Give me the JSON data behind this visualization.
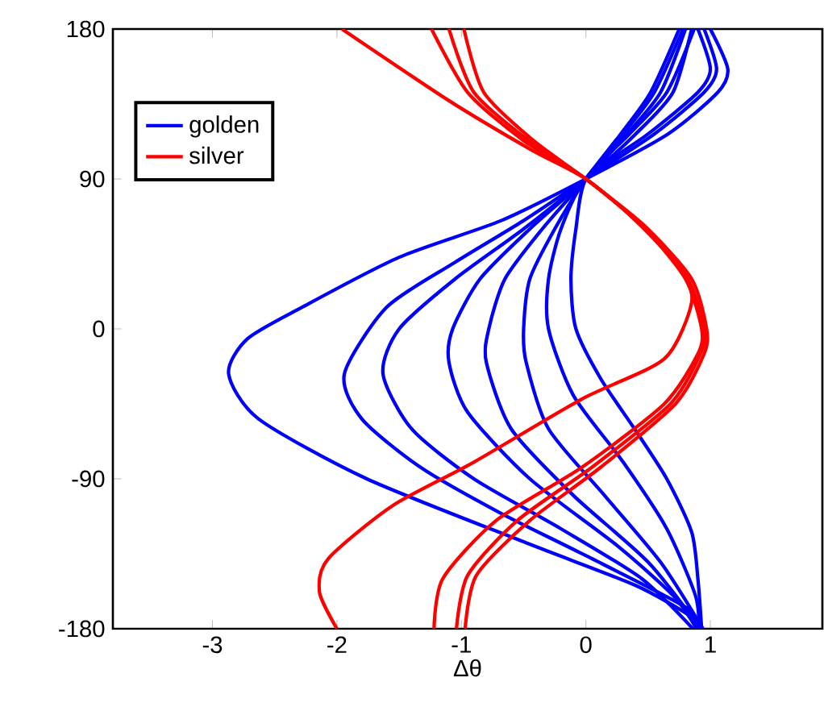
{
  "chart_data": {
    "type": "line",
    "xlabel": "Δθ",
    "xlim": [
      -3.8,
      1.9
    ],
    "ylim": [
      -180,
      180
    ],
    "xticks": [
      -3,
      -2,
      -1,
      0,
      1
    ],
    "yticks": [
      -180,
      -90,
      0,
      90,
      180
    ],
    "legend": "top left",
    "grid": false,
    "series": [
      {
        "name": "golden",
        "color": "#0000ff",
        "x": [
          1.0,
          1.14,
          1.06,
          0.66,
          0,
          -0.68,
          -1.5,
          -2.28,
          -2.72,
          -2.87,
          -2.63,
          -1.76,
          -0.46,
          0.4,
          0.85,
          0.88
        ],
        "values": [
          180,
          156,
          142,
          117,
          90,
          65,
          43,
          13,
          -6,
          -27,
          -54,
          -90,
          -129,
          -154,
          -173,
          -180
        ]
      },
      {
        "color": "#0000ff",
        "x": [
          0.95,
          1.05,
          0.95,
          0.55,
          0,
          -0.5,
          -1.05,
          -1.6,
          -1.94,
          -1.8,
          -1.33,
          -0.7,
          -0.03,
          0.8,
          0.9
        ],
        "values": [
          180,
          156,
          142,
          117,
          90,
          65,
          40,
          13,
          -27,
          -54,
          -83,
          -110,
          -135,
          -167,
          -180
        ]
      },
      {
        "color": "#0000ff",
        "x": [
          0.85,
          0.7,
          0.4,
          0,
          -0.5,
          -1.05,
          -1.5,
          -1.63,
          -1.4,
          -0.9,
          -0.2,
          0.45,
          0.86
        ],
        "values": [
          180,
          142,
          117,
          90,
          60,
          30,
          0,
          -27,
          -60,
          -90,
          -120,
          -150,
          -180
        ]
      },
      {
        "color": "#0000ff",
        "x": [
          0.8,
          0.6,
          0.33,
          0,
          -0.45,
          -0.85,
          -1.07,
          -1.1,
          -0.95,
          -0.45,
          0.25,
          0.7,
          0.89
        ],
        "values": [
          180,
          142,
          117,
          90,
          60,
          30,
          0,
          -20,
          -50,
          -90,
          -130,
          -160,
          -180
        ]
      },
      {
        "color": "#0000ff",
        "x": [
          0.78,
          0.55,
          0.3,
          0,
          -0.35,
          -0.65,
          -0.78,
          -0.8,
          -0.6,
          -0.1,
          0.5,
          0.92
        ],
        "values": [
          180,
          142,
          117,
          90,
          60,
          30,
          0,
          -20,
          -60,
          -100,
          -140,
          -180
        ]
      },
      {
        "color": "#0000ff",
        "x": [
          0.75,
          0.52,
          0.28,
          0,
          -0.25,
          -0.45,
          -0.5,
          -0.48,
          -0.3,
          0.15,
          0.6,
          0.94
        ],
        "values": [
          180,
          142,
          117,
          90,
          60,
          30,
          0,
          -20,
          -60,
          -100,
          -140,
          -180
        ]
      },
      {
        "color": "#0000ff",
        "x": [
          0.9,
          1.0,
          0.9,
          0.5,
          0,
          -0.2,
          -0.3,
          -0.3,
          -0.1,
          0.3,
          0.65,
          0.88,
          0.91
        ],
        "values": [
          180,
          156,
          142,
          117,
          90,
          60,
          30,
          0,
          -40,
          -80,
          -120,
          -160,
          -180
        ]
      },
      {
        "color": "#0000ff",
        "x": [
          0.87,
          0.65,
          0.35,
          0,
          -0.08,
          -0.12,
          -0.08,
          0.12,
          0.4,
          0.65,
          0.85,
          0.9,
          0.93
        ],
        "values": [
          180,
          142,
          117,
          90,
          60,
          30,
          0,
          -30,
          -61,
          -90,
          -122,
          -150,
          -180
        ]
      },
      {
        "name": "silver",
        "color": "#ff0000",
        "x": [
          -1.96,
          -1.1,
          -0.45,
          0,
          0.4,
          0.76,
          0.85,
          0.63,
          -0.03,
          -0.9,
          -1.55,
          -2.07,
          -2.14,
          -2.0
        ],
        "values": [
          180,
          137,
          108,
          90,
          65,
          36,
          16,
          -18,
          -42,
          -80,
          -106,
          -138,
          -158,
          -180
        ]
      },
      {
        "color": "#ff0000",
        "x": [
          -1.24,
          -0.95,
          -0.5,
          0,
          0.45,
          0.8,
          0.93,
          0.9,
          0.63,
          -0.03,
          -0.72,
          -1.15,
          -1.22
        ],
        "values": [
          180,
          142,
          113,
          90,
          62,
          30,
          0,
          -15,
          -45,
          -83,
          -115,
          -150,
          -180
        ]
      },
      {
        "color": "#ff0000",
        "x": [
          -1.1,
          -0.9,
          -0.46,
          0,
          0.45,
          0.82,
          0.95,
          0.92,
          0.68,
          0.05,
          -0.55,
          -0.95,
          -1.04
        ],
        "values": [
          180,
          142,
          113,
          90,
          62,
          30,
          0,
          -15,
          -45,
          -83,
          -115,
          -148,
          -180
        ]
      },
      {
        "color": "#ff0000",
        "x": [
          -0.98,
          -0.82,
          -0.42,
          0,
          0.47,
          0.85,
          0.97,
          0.95,
          0.72,
          0.12,
          -0.45,
          -0.88,
          -0.97
        ],
        "values": [
          180,
          142,
          113,
          90,
          62,
          30,
          0,
          -15,
          -45,
          -83,
          -115,
          -148,
          -180
        ]
      }
    ]
  }
}
